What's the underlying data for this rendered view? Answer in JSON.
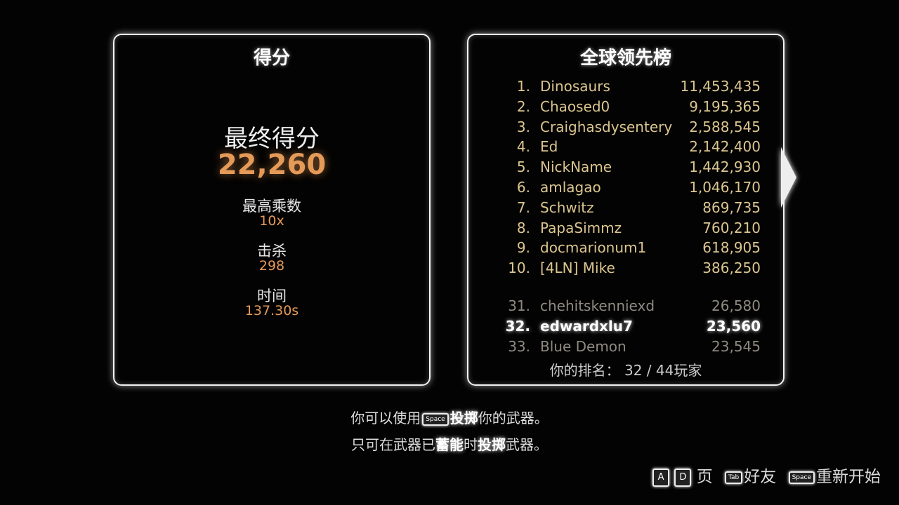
{
  "score_panel": {
    "title": "得分",
    "final_score_label": "最终得分",
    "final_score": "22,260",
    "max_multiplier_label": "最高乘数",
    "max_multiplier": "10x",
    "kills_label": "击杀",
    "kills": "298",
    "time_label": "时间",
    "time": "137.30s"
  },
  "leaderboard": {
    "title": "全球领先榜",
    "top": [
      {
        "rank": "1.",
        "name": "Dinosaurs",
        "score": "11,453,435"
      },
      {
        "rank": "2.",
        "name": "Chaosed0",
        "score": "9,195,365"
      },
      {
        "rank": "3.",
        "name": "Craighasdysentery",
        "score": "2,588,545"
      },
      {
        "rank": "4.",
        "name": "Ed",
        "score": "2,142,400"
      },
      {
        "rank": "5.",
        "name": "NickName",
        "score": "1,442,930"
      },
      {
        "rank": "6.",
        "name": "amlagao",
        "score": "1,046,170"
      },
      {
        "rank": "7.",
        "name": "Schwitz",
        "score": "869,735"
      },
      {
        "rank": "8.",
        "name": "PapaSimmz",
        "score": "760,210"
      },
      {
        "rank": "9.",
        "name": "docmarionum1",
        "score": "618,905"
      },
      {
        "rank": "10.",
        "name": "[4LN] Mike",
        "score": "386,250"
      }
    ],
    "nearby": [
      {
        "rank": "31.",
        "name": "chehitskenniexd",
        "score": "26,580"
      },
      {
        "rank": "32.",
        "name": "edwardxlu7",
        "score": "23,560",
        "current": true
      },
      {
        "rank": "33.",
        "name": "Blue Demon",
        "score": "23,545"
      }
    ],
    "your_rank_label": "你的排名：",
    "your_rank": "32 / 44玩家"
  },
  "hints": {
    "line1_a": "你可以使用",
    "line1_key": "Space",
    "line1_b": "投掷",
    "line1_c": "你的武器。",
    "line2_a": "只可在武器已",
    "line2_b": "蓄能",
    "line2_c": "时",
    "line2_d": "投掷",
    "line2_e": "武器。"
  },
  "footer": {
    "key_a": "A",
    "key_d": "D",
    "page_label": "页",
    "key_tab": "Tab",
    "friends_label": "好友",
    "key_space": "Space",
    "restart_label": "重新开始"
  },
  "colors": {
    "accent_orange": "#e69a58",
    "leaderboard_text": "#dcc690",
    "panel_border": "#f2f2f2"
  }
}
